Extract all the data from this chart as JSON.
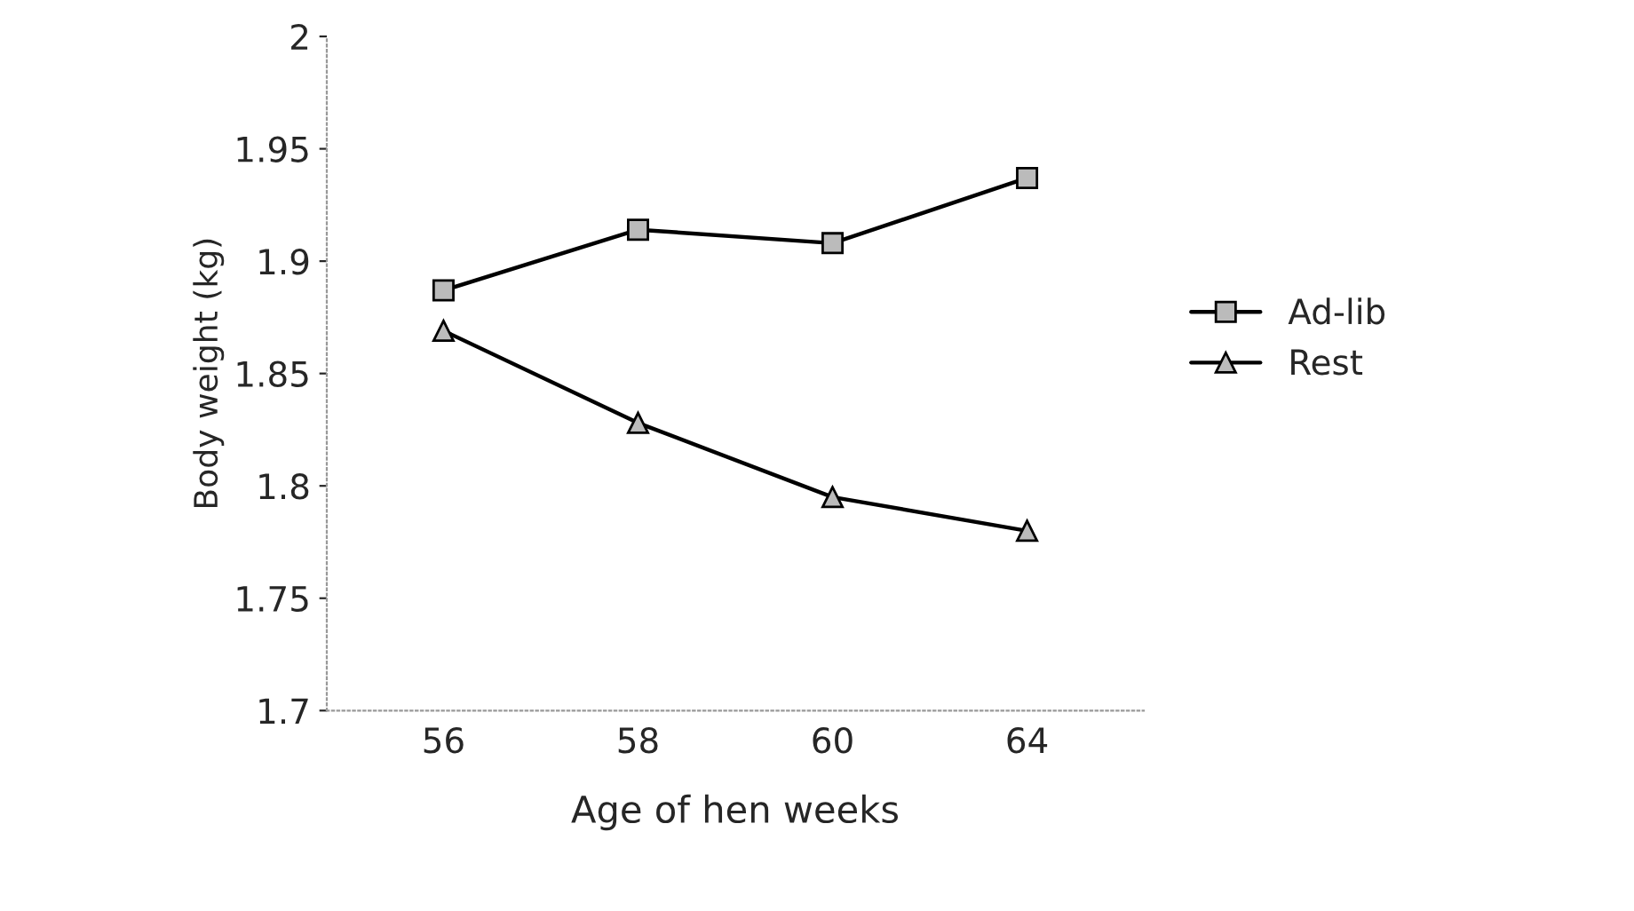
{
  "chart_data": {
    "type": "line",
    "xlabel": "Age of hen weeks",
    "ylabel": "Body weight (kg)",
    "categories": [
      "56",
      "58",
      "60",
      "64"
    ],
    "series": [
      {
        "name": "Ad-lib",
        "color": "#000000",
        "marker": "square",
        "values": [
          1.887,
          1.914,
          1.908,
          1.937
        ]
      },
      {
        "name": "Rest",
        "color": "#000000",
        "marker": "triangle",
        "values": [
          1.869,
          1.828,
          1.795,
          1.78
        ]
      }
    ],
    "ylim": [
      1.7,
      2
    ],
    "yticks": [
      1.7,
      1.75,
      1.8,
      1.85,
      1.9,
      1.95,
      2
    ],
    "grid": false,
    "legend": "right",
    "line_style": "solid"
  }
}
